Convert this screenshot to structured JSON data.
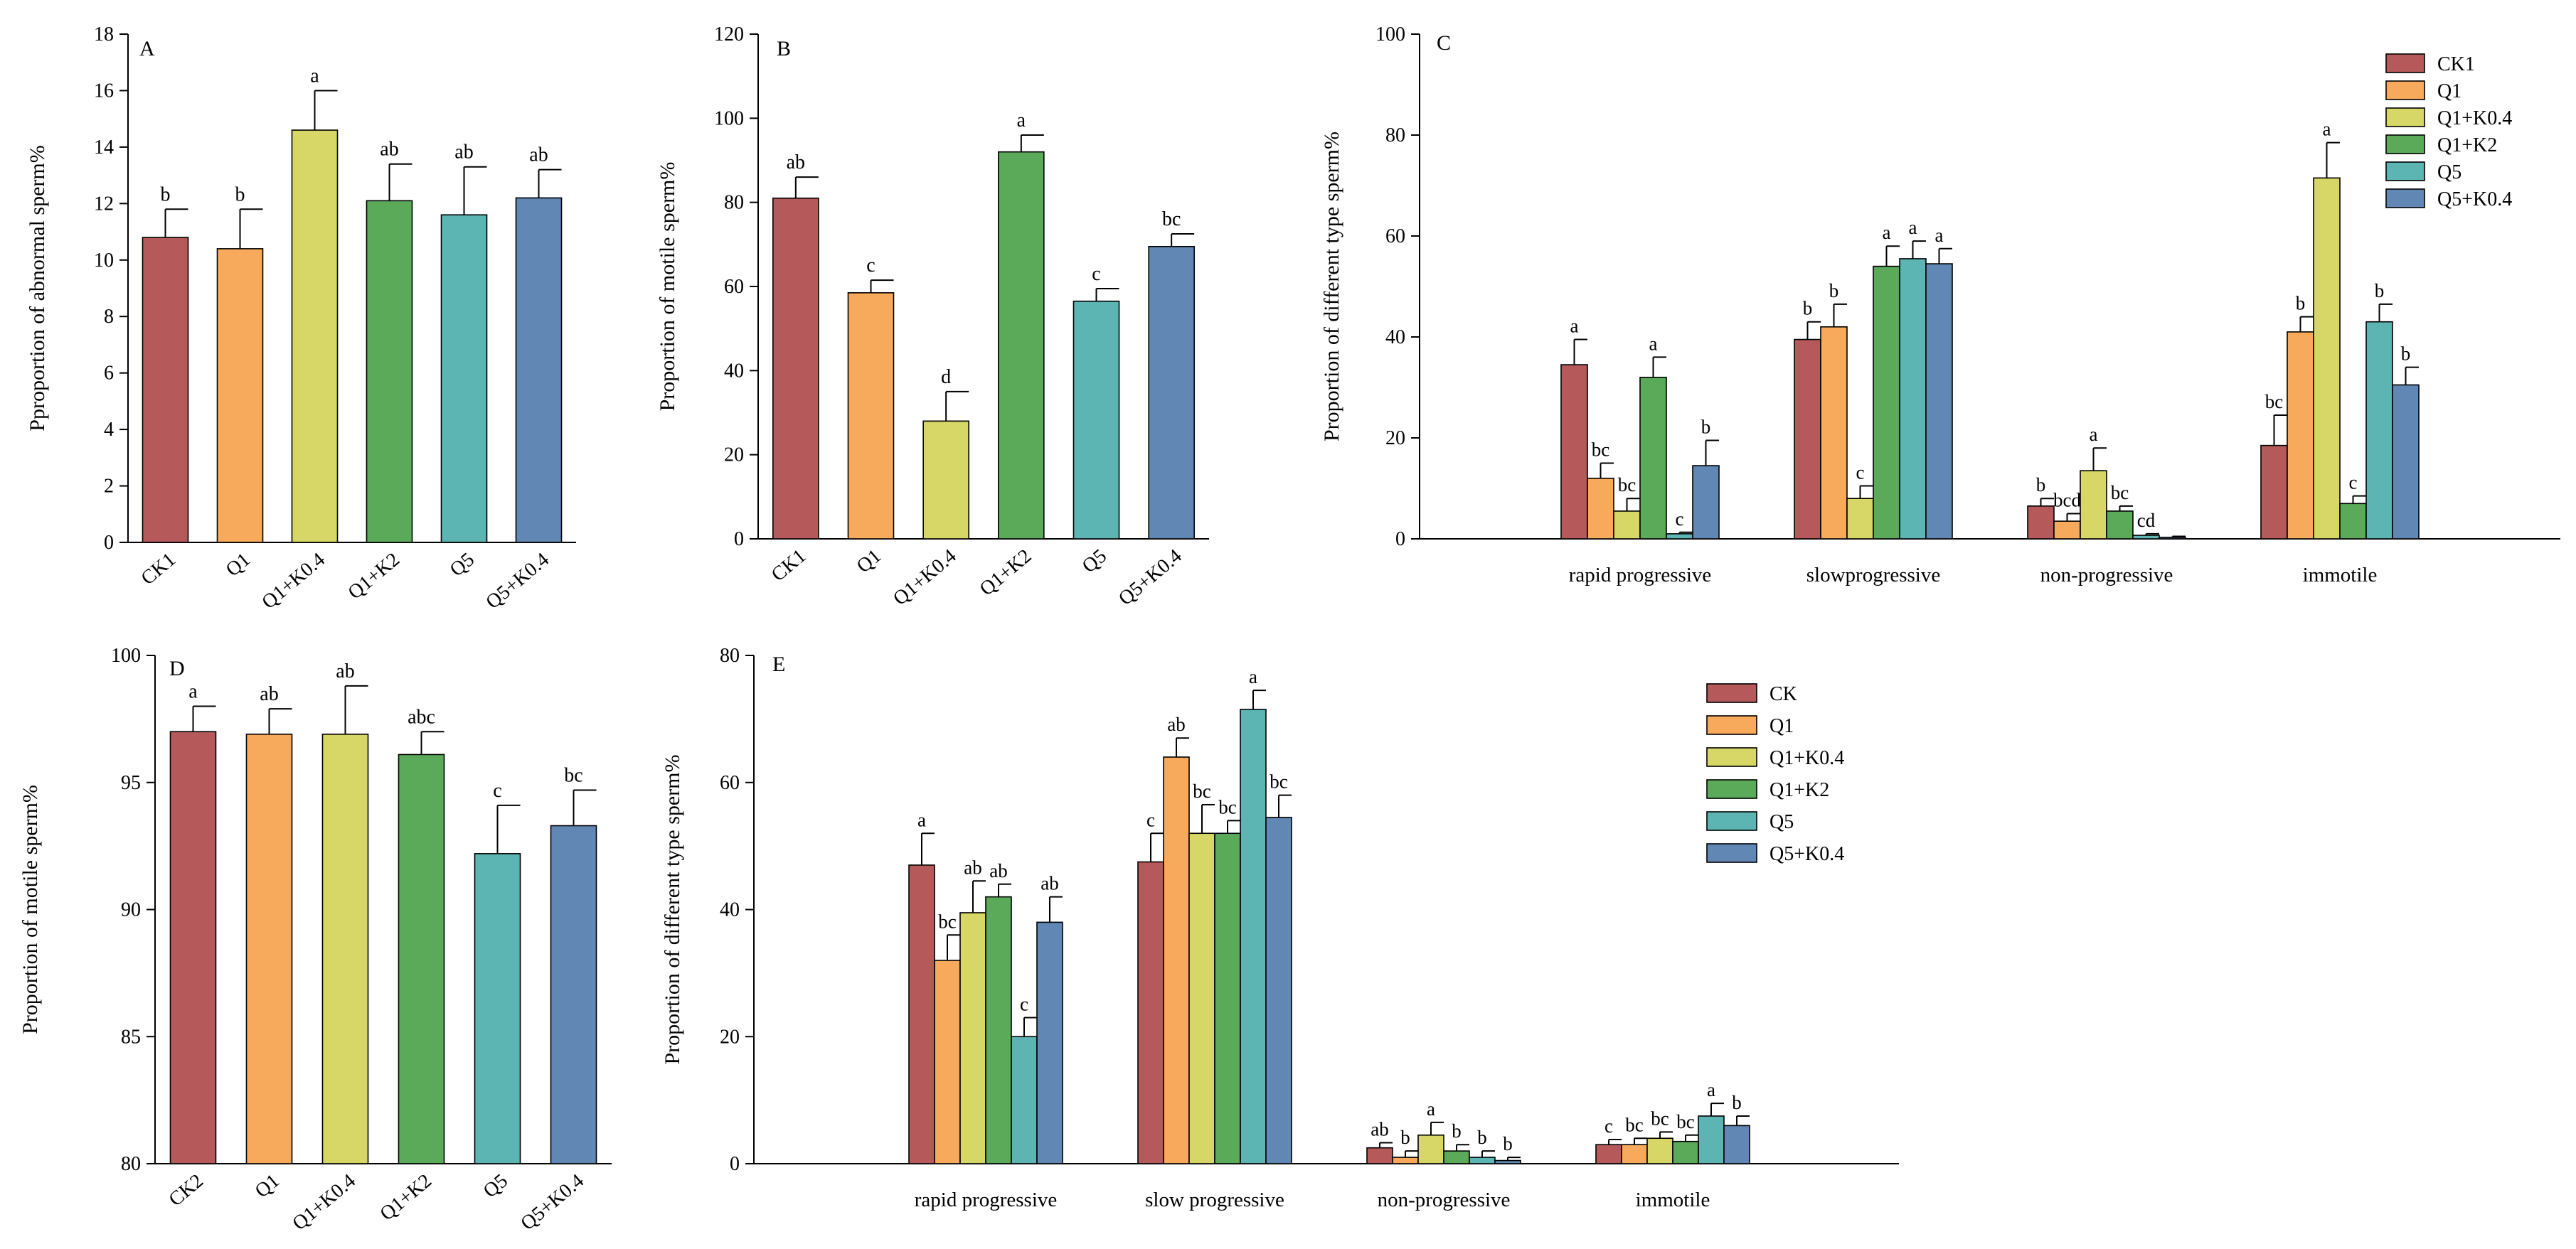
{
  "colors": {
    "CK": "#b5595a",
    "Q1": "#f7a95c",
    "Q1K04": "#d6d766",
    "Q1K2": "#5aaa5a",
    "Q5": "#5cb4b3",
    "Q5K04": "#6187b4",
    "axis": "#000000",
    "error_bar": "#000000"
  },
  "chart_data": [
    {
      "id": "A",
      "type": "bar",
      "panel_label": "A",
      "ylabel": "Pproportion of abnormal sperm%",
      "ylim": [
        0,
        18
      ],
      "yticks": [
        0,
        2,
        4,
        6,
        8,
        10,
        12,
        14,
        16,
        18
      ],
      "categories": [
        "CK1",
        "Q1",
        "Q1+K0.4",
        "Q1+K2",
        "Q5",
        "Q5+K0.4"
      ],
      "color_keys": [
        "CK",
        "Q1",
        "Q1K04",
        "Q1K2",
        "Q5",
        "Q5K04"
      ],
      "values": [
        10.8,
        10.4,
        14.6,
        12.1,
        11.6,
        12.2
      ],
      "errors": [
        1.0,
        1.4,
        1.4,
        1.3,
        1.7,
        1.0
      ],
      "sig": [
        "b",
        "b",
        "a",
        "ab",
        "ab",
        "ab"
      ]
    },
    {
      "id": "B",
      "type": "bar",
      "panel_label": "B",
      "ylabel": "Proportion of motile sperm%",
      "ylim": [
        0,
        120
      ],
      "yticks": [
        0,
        20,
        40,
        60,
        80,
        100,
        120
      ],
      "categories": [
        "CK1",
        "Q1",
        "Q1+K0.4",
        "Q1+K2",
        "Q5",
        "Q5+K0.4"
      ],
      "color_keys": [
        "CK",
        "Q1",
        "Q1K04",
        "Q1K2",
        "Q5",
        "Q5K04"
      ],
      "values": [
        81,
        58.5,
        28,
        92,
        56.5,
        69.5
      ],
      "errors": [
        5,
        3,
        7,
        4,
        3,
        3
      ],
      "sig": [
        "ab",
        "c",
        "d",
        "a",
        "c",
        "bc"
      ]
    },
    {
      "id": "C",
      "type": "bar",
      "panel_label": "C",
      "ylabel": "Proportion of different type sperm%",
      "ylim": [
        0,
        100
      ],
      "yticks": [
        0,
        20,
        40,
        60,
        80,
        100
      ],
      "categories": [
        "rapid progressive",
        "slowprogressive",
        "non-progressive",
        "immotile"
      ],
      "legend_position": "top-right",
      "series": [
        {
          "name": "CK1",
          "color_key": "CK",
          "values": [
            34.5,
            39.5,
            6.5,
            18.5
          ],
          "errors": [
            5,
            3.5,
            1.5,
            6
          ],
          "sig": [
            "a",
            "b",
            "b",
            "bc"
          ]
        },
        {
          "name": "Q1",
          "color_key": "Q1",
          "values": [
            12,
            42,
            3.5,
            41
          ],
          "errors": [
            3,
            4.5,
            1.5,
            3
          ],
          "sig": [
            "bc",
            "b",
            "bcd",
            "b"
          ]
        },
        {
          "name": "Q1+K0.4",
          "color_key": "Q1K04",
          "values": [
            5.5,
            8,
            13.5,
            71.5
          ],
          "errors": [
            2.5,
            2.5,
            4.5,
            7
          ],
          "sig": [
            "bc",
            "c",
            "a",
            "a"
          ]
        },
        {
          "name": "Q1+K2",
          "color_key": "Q1K2",
          "values": [
            32,
            54,
            5.5,
            7
          ],
          "errors": [
            4,
            4,
            1,
            1.5
          ],
          "sig": [
            "a",
            "a",
            "bc",
            "c"
          ]
        },
        {
          "name": "Q5",
          "color_key": "Q5",
          "values": [
            1,
            55.5,
            0.7,
            43
          ],
          "errors": [
            0.3,
            3.5,
            0.3,
            3.5
          ],
          "sig": [
            "c",
            "a",
            "cd",
            "b"
          ]
        },
        {
          "name": "Q5+K0.4",
          "color_key": "Q5K04",
          "values": [
            14.5,
            54.5,
            0.3,
            30.5
          ],
          "errors": [
            5,
            3,
            0.2,
            3.5
          ],
          "sig": [
            "b",
            "a",
            "",
            "b"
          ]
        }
      ]
    },
    {
      "id": "D",
      "type": "bar",
      "panel_label": "D",
      "ylabel": "Proportion of motile sperm%",
      "ylim": [
        80,
        100
      ],
      "yticks": [
        80,
        85,
        90,
        95,
        100
      ],
      "categories": [
        "CK2",
        "Q1",
        "Q1+K0.4",
        "Q1+K2",
        "Q5",
        "Q5+K0.4"
      ],
      "color_keys": [
        "CK",
        "Q1",
        "Q1K04",
        "Q1K2",
        "Q5",
        "Q5K04"
      ],
      "values": [
        97,
        96.9,
        96.9,
        96.1,
        92.2,
        93.3
      ],
      "errors": [
        1.0,
        1.0,
        1.9,
        0.9,
        1.9,
        1.4
      ],
      "sig": [
        "a",
        "ab",
        "ab",
        "abc",
        "c",
        "bc"
      ]
    },
    {
      "id": "E",
      "type": "bar",
      "panel_label": "E",
      "ylabel": "Proportion of different type sperm%",
      "ylim": [
        0,
        80
      ],
      "yticks": [
        0,
        20,
        40,
        60,
        80
      ],
      "categories": [
        "rapid progressive",
        "slow progressive",
        "non-progressive",
        "immotile"
      ],
      "legend_position": "top-right",
      "series": [
        {
          "name": "CK",
          "color_key": "CK",
          "values": [
            47,
            47.5,
            2.5,
            3
          ],
          "errors": [
            5,
            4.5,
            0.8,
            0.8
          ],
          "sig": [
            "a",
            "c",
            "ab",
            "c"
          ]
        },
        {
          "name": "Q1",
          "color_key": "Q1",
          "values": [
            32,
            64,
            1,
            3
          ],
          "errors": [
            4,
            3,
            1,
            1
          ],
          "sig": [
            "bc",
            "ab",
            "b",
            "bc"
          ]
        },
        {
          "name": "Q1+K0.4",
          "color_key": "Q1K04",
          "values": [
            39.5,
            52,
            4.5,
            4
          ],
          "errors": [
            5,
            4.5,
            2,
            1
          ],
          "sig": [
            "ab",
            "bc",
            "a",
            "bc"
          ]
        },
        {
          "name": "Q1+K2",
          "color_key": "Q1K2",
          "values": [
            42,
            52,
            2,
            3.5
          ],
          "errors": [
            2,
            2,
            1,
            1
          ],
          "sig": [
            "ab",
            "bc",
            "b",
            "bc"
          ]
        },
        {
          "name": "Q5",
          "color_key": "Q5",
          "values": [
            20,
            71.5,
            1,
            7.5
          ],
          "errors": [
            3,
            3,
            1,
            2
          ],
          "sig": [
            "c",
            "a",
            "b",
            "a"
          ]
        },
        {
          "name": "Q5+K0.4",
          "color_key": "Q5K04",
          "values": [
            38,
            54.5,
            0.5,
            6
          ],
          "errors": [
            4,
            3.5,
            0.5,
            1.5
          ],
          "sig": [
            "ab",
            "bc",
            "b",
            "b"
          ]
        }
      ]
    }
  ]
}
